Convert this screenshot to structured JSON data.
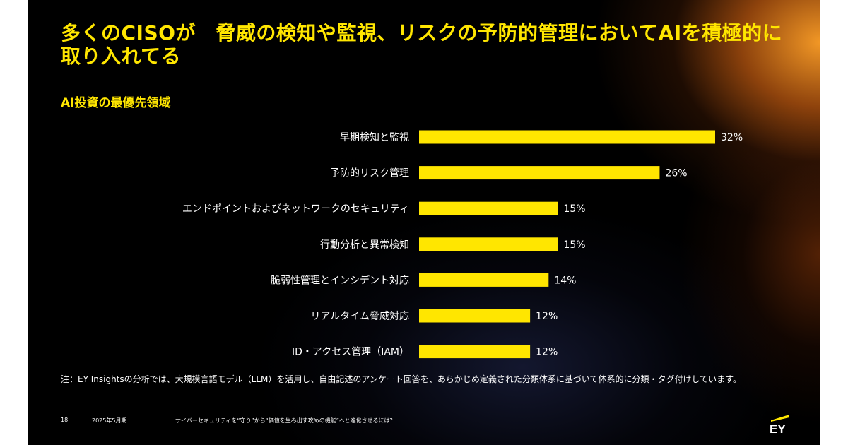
{
  "title": "多くのCISOが　脅威の検知や監視、リスクの予防的管理においてAIを積極的に取り入れてる",
  "subtitle": "AI投資の最優先領域",
  "chart_data": {
    "type": "bar",
    "orientation": "horizontal",
    "categories": [
      "早期検知と監視",
      "予防的リスク管理",
      "エンドポイントおよびネットワークのセキュリティ",
      "行動分析と異常検知",
      "脆弱性管理とインシデント対応",
      "リアルタイム脅威対応",
      "ID・アクセス管理（IAM）"
    ],
    "values": [
      32,
      26,
      15,
      15,
      14,
      12,
      12
    ],
    "value_labels": [
      "32%",
      "26%",
      "15%",
      "15%",
      "14%",
      "12%",
      "12%"
    ],
    "unit": "%",
    "bar_color": "#ffe600",
    "grid": false,
    "xlim": [
      0,
      32
    ]
  },
  "note": "注：EY Insightsの分析では、大規模言語モデル（LLM）を活用し、自由記述のアンケート回答を、あらかじめ定義された分類体系に基づいて体系的に分類・タグ付けしています。",
  "footer": {
    "page_number": "18",
    "date": "2025年5月期",
    "doc_title": "サイバーセキュリティを“守り”から“価値を生み出す攻めの機能”へと進化させるには？"
  },
  "logo": {
    "text": "EY",
    "accent_color": "#ffe600"
  }
}
